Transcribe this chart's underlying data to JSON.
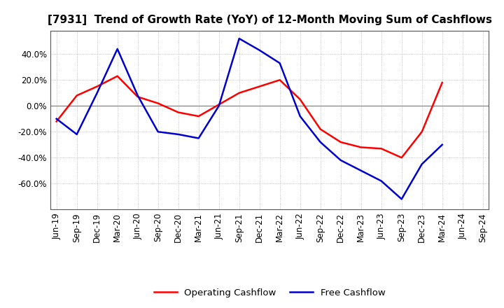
{
  "title": "[7931]  Trend of Growth Rate (YoY) of 12-Month Moving Sum of Cashflows",
  "x_labels": [
    "Jun-19",
    "Sep-19",
    "Dec-19",
    "Mar-20",
    "Jun-20",
    "Sep-20",
    "Dec-20",
    "Mar-21",
    "Jun-21",
    "Sep-21",
    "Dec-21",
    "Mar-22",
    "Jun-22",
    "Sep-22",
    "Dec-22",
    "Mar-23",
    "Jun-23",
    "Sep-23",
    "Dec-23",
    "Mar-24",
    "Jun-24",
    "Sep-24"
  ],
  "operating_cashflow": [
    -12,
    8,
    15,
    23,
    7,
    2,
    -5,
    -8,
    1,
    10,
    15,
    20,
    5,
    -18,
    -28,
    -32,
    -33,
    -40,
    -20,
    18,
    null,
    null
  ],
  "free_cashflow": [
    -10,
    -22,
    10,
    44,
    8,
    -20,
    -22,
    -25,
    0,
    52,
    43,
    33,
    -8,
    -28,
    -42,
    -50,
    -58,
    -72,
    -45,
    -30,
    null,
    null
  ],
  "ylim_min": -80,
  "ylim_max": 58,
  "yticks": [
    -60,
    -40,
    -20,
    0,
    20,
    40
  ],
  "operating_color": "#ff0000",
  "free_color": "#0000cd",
  "background_color": "#ffffff",
  "grid_color": "#aaaaaa",
  "zero_line_color": "#777777",
  "spine_color": "#555555",
  "title_fontsize": 11,
  "tick_fontsize": 8.5,
  "legend_fontsize": 9.5,
  "line_width": 1.8
}
